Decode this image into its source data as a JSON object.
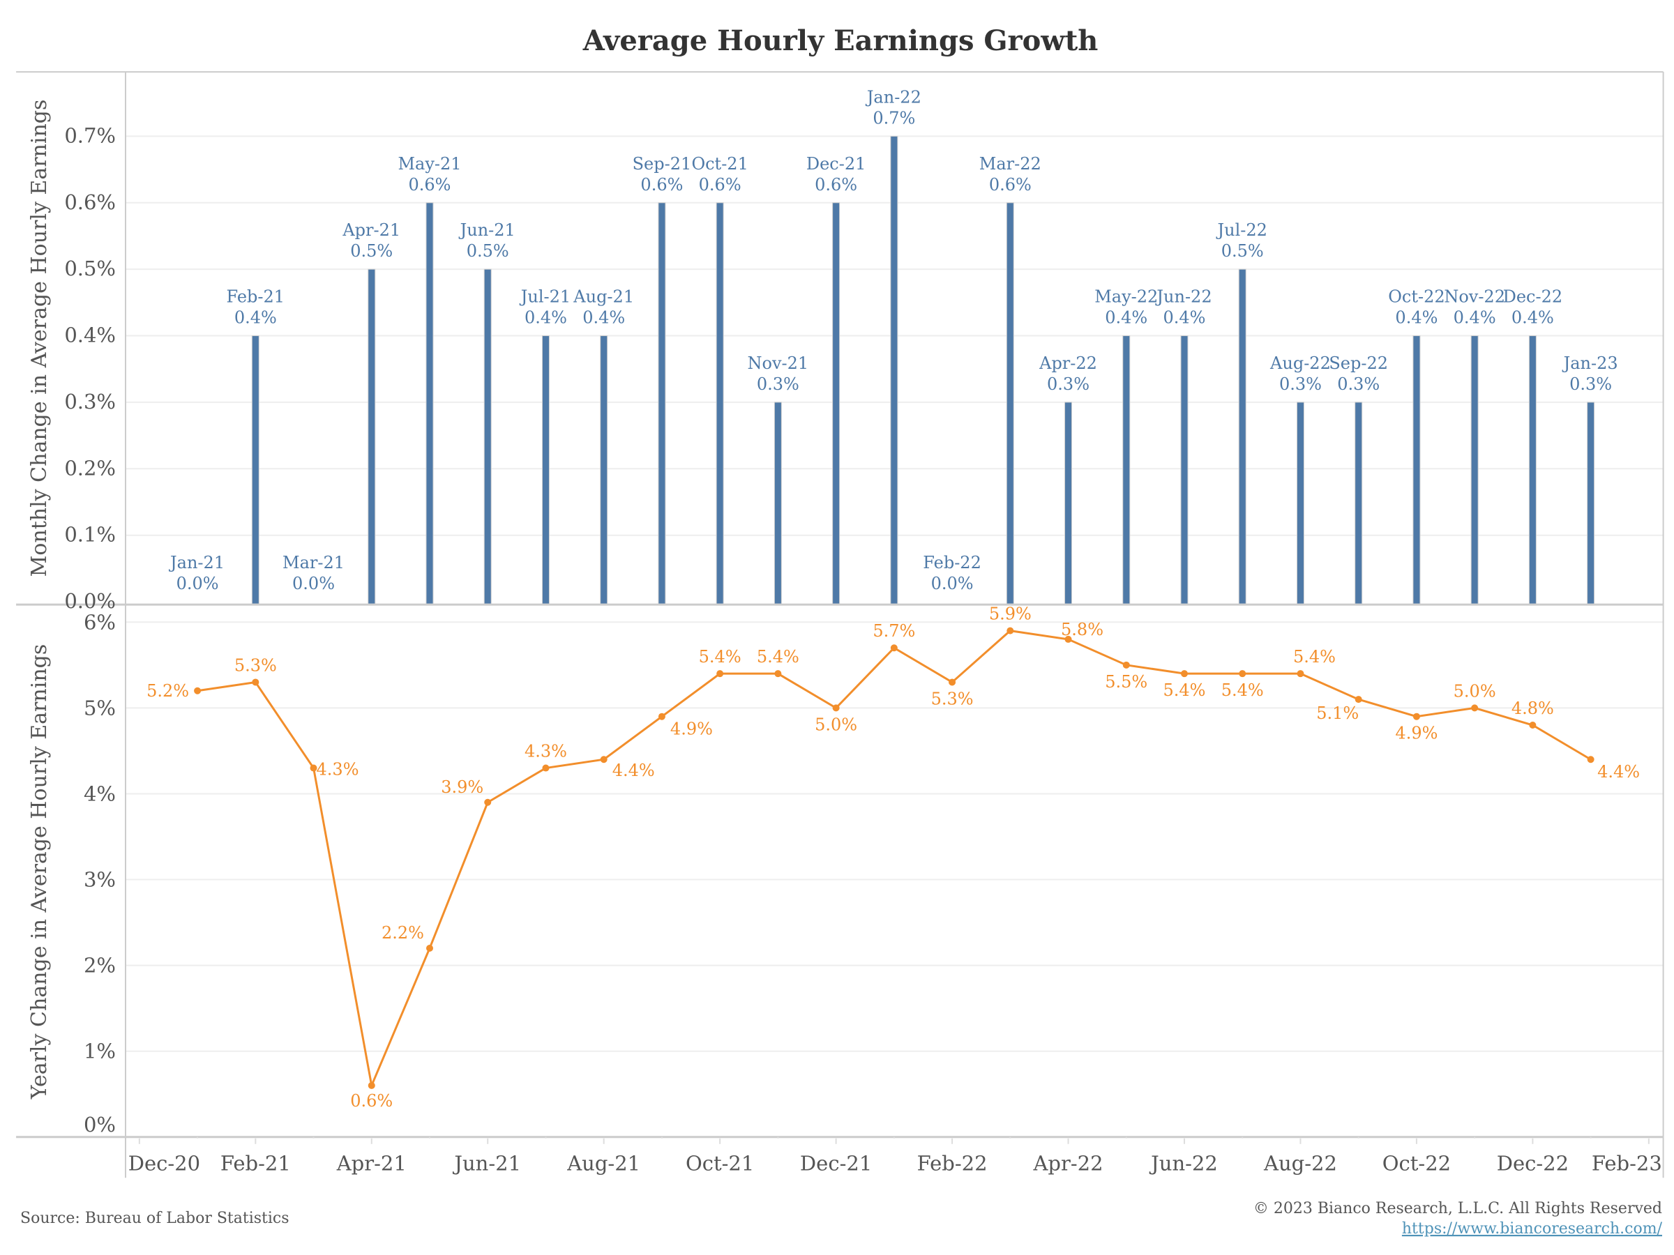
{
  "chart_data": [
    {
      "type": "bar",
      "title": "Average Hourly Earnings Growth",
      "ylabel": "Monthly Change in Average Hourly Earnings",
      "ylim": [
        0,
        0.75
      ],
      "yticks": [
        "0.0%",
        "0.1%",
        "0.2%",
        "0.3%",
        "0.4%",
        "0.5%",
        "0.6%",
        "0.7%"
      ],
      "ytick_values": [
        0,
        0.1,
        0.2,
        0.3,
        0.4,
        0.5,
        0.6,
        0.7
      ],
      "grid": true,
      "color": "#4e79a7",
      "categories": [
        "Jan-21",
        "Feb-21",
        "Mar-21",
        "Apr-21",
        "May-21",
        "Jun-21",
        "Jul-21",
        "Aug-21",
        "Sep-21",
        "Oct-21",
        "Nov-21",
        "Dec-21",
        "Jan-22",
        "Feb-22",
        "Mar-22",
        "Apr-22",
        "May-22",
        "Jun-22",
        "Jul-22",
        "Aug-22",
        "Sep-22",
        "Oct-22",
        "Nov-22",
        "Dec-22",
        "Jan-23"
      ],
      "values": [
        0.0,
        0.4,
        0.0,
        0.5,
        0.6,
        0.5,
        0.4,
        0.4,
        0.6,
        0.6,
        0.3,
        0.6,
        0.7,
        0.0,
        0.6,
        0.3,
        0.4,
        0.4,
        0.5,
        0.3,
        0.3,
        0.4,
        0.4,
        0.4,
        0.3
      ],
      "labels": [
        "0.0%",
        "0.4%",
        "0.0%",
        "0.5%",
        "0.6%",
        "0.5%",
        "0.4%",
        "0.4%",
        "0.6%",
        "0.6%",
        "0.3%",
        "0.6%",
        "0.7%",
        "0.0%",
        "0.6%",
        "0.3%",
        "0.4%",
        "0.4%",
        "0.5%",
        "0.3%",
        "0.3%",
        "0.4%",
        "0.4%",
        "0.4%",
        "0.3%"
      ]
    },
    {
      "type": "line",
      "ylabel": "Yearly Change in Average Hourly Earnings",
      "ylim": [
        0,
        6
      ],
      "yticks": [
        "0%",
        "1%",
        "2%",
        "3%",
        "4%",
        "5%",
        "6%"
      ],
      "ytick_values": [
        0,
        1,
        2,
        3,
        4,
        5,
        6
      ],
      "grid": true,
      "color": "#f28e2b",
      "categories": [
        "Jan-21",
        "Feb-21",
        "Mar-21",
        "Apr-21",
        "May-21",
        "Jun-21",
        "Jul-21",
        "Aug-21",
        "Sep-21",
        "Oct-21",
        "Nov-21",
        "Dec-21",
        "Jan-22",
        "Feb-22",
        "Mar-22",
        "Apr-22",
        "May-22",
        "Jun-22",
        "Jul-22",
        "Aug-22",
        "Sep-22",
        "Oct-22",
        "Nov-22",
        "Dec-22",
        "Jan-23"
      ],
      "values": [
        5.2,
        5.3,
        4.3,
        0.6,
        2.2,
        3.9,
        4.3,
        4.4,
        4.9,
        5.4,
        5.4,
        5.0,
        5.7,
        5.3,
        5.9,
        5.8,
        5.5,
        5.4,
        5.4,
        5.4,
        5.1,
        4.9,
        5.0,
        4.8,
        4.4
      ],
      "labels": [
        "5.2%",
        "5.3%",
        "4.3%",
        "0.6%",
        "2.2%",
        "3.9%",
        "4.3%",
        "4.4%",
        "4.9%",
        "5.4%",
        "5.4%",
        "5.0%",
        "5.7%",
        "5.3%",
        "5.9%",
        "5.8%",
        "5.5%",
        "5.4%",
        "5.4%",
        "5.4%",
        "5.1%",
        "4.9%",
        "5.0%",
        "4.8%",
        "4.4%"
      ]
    }
  ],
  "xaxis": {
    "ticks": [
      "Dec-20",
      "Feb-21",
      "Apr-21",
      "Jun-21",
      "Aug-21",
      "Oct-21",
      "Dec-21",
      "Feb-22",
      "Apr-22",
      "Jun-22",
      "Aug-22",
      "Oct-22",
      "Dec-22",
      "Feb-23"
    ],
    "tick_month_index": [
      -1,
      1,
      3,
      5,
      7,
      9,
      11,
      13,
      15,
      17,
      19,
      21,
      23,
      25
    ]
  },
  "footer": {
    "source": "Source: Bureau of Labor Statistics",
    "copyright": "© 2023 Bianco Research, L.L.C. All Rights Reserved",
    "url": "https://www.biancoresearch.com/"
  }
}
